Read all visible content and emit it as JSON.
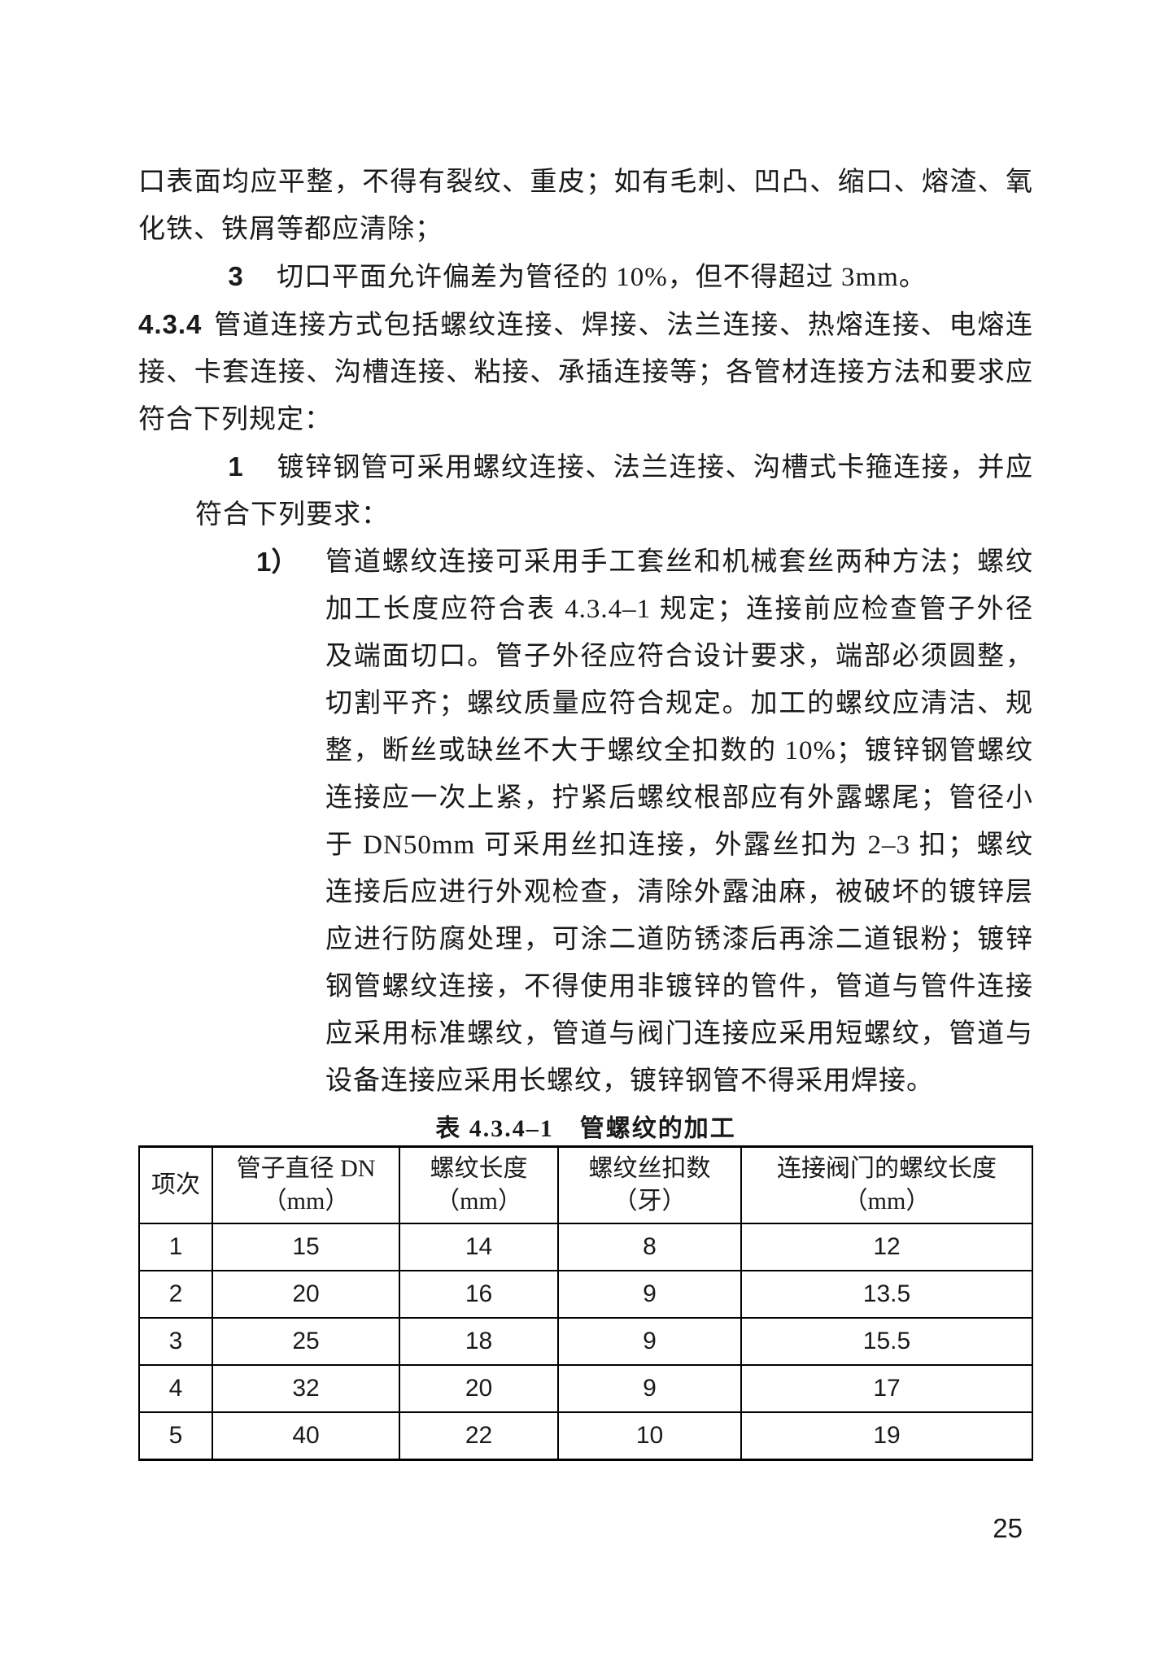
{
  "p1": "口表面均应平整，不得有裂纹、重皮；如有毛刺、凹凸、缩口、熔渣、氧化铁、铁屑等都应清除；",
  "p2_num": "3",
  "p2": "切口平面允许偏差为管径的 10%，但不得超过 3mm。",
  "p3_num": "4.3.4",
  "p3": "管道连接方式包括螺纹连接、焊接、法兰连接、热熔连接、电熔连接、卡套连接、沟槽连接、粘接、承插连接等；各管材连接方法和要求应符合下列规定：",
  "p4_num": "1",
  "p4": "镀锌钢管可采用螺纹连接、法兰连接、沟槽式卡箍连接，并应符合下列要求：",
  "p5_num": "1）",
  "p5": "管道螺纹连接可采用手工套丝和机械套丝两种方法；螺纹加工长度应符合表 4.3.4–1 规定；连接前应检查管子外径及端面切口。管子外径应符合设计要求，端部必须圆整，切割平齐；螺纹质量应符合规定。加工的螺纹应清洁、规整，断丝或缺丝不大于螺纹全扣数的 10%；镀锌钢管螺纹连接应一次上紧，拧紧后螺纹根部应有外露螺尾；管径小于 DN50mm 可采用丝扣连接，外露丝扣为 2–3 扣；螺纹连接后应进行外观检查，清除外露油麻，被破坏的镀锌层应进行防腐处理，可涂二道防锈漆后再涂二道银粉；镀锌钢管螺纹连接，不得使用非镀锌的管件，管道与管件连接应采用标准螺纹，管道与阀门连接应采用短螺纹，管道与设备连接应采用长螺纹，镀锌钢管不得采用焊接。",
  "table": {
    "caption": "表 4.3.4–1　管螺纹的加工",
    "headers": [
      {
        "l1": "项次",
        "l2": ""
      },
      {
        "l1": "管子直径 DN",
        "l2": "（mm）"
      },
      {
        "l1": "螺纹长度",
        "l2": "（mm）"
      },
      {
        "l1": "螺纹丝扣数",
        "l2": "（牙）"
      },
      {
        "l1": "连接阀门的螺纹长度",
        "l2": "（mm）"
      }
    ],
    "rows": [
      [
        "1",
        "15",
        "14",
        "8",
        "12"
      ],
      [
        "2",
        "20",
        "16",
        "9",
        "13.5"
      ],
      [
        "3",
        "25",
        "18",
        "9",
        "15.5"
      ],
      [
        "4",
        "32",
        "20",
        "9",
        "17"
      ],
      [
        "5",
        "40",
        "22",
        "10",
        "19"
      ]
    ]
  },
  "page_number": "25"
}
